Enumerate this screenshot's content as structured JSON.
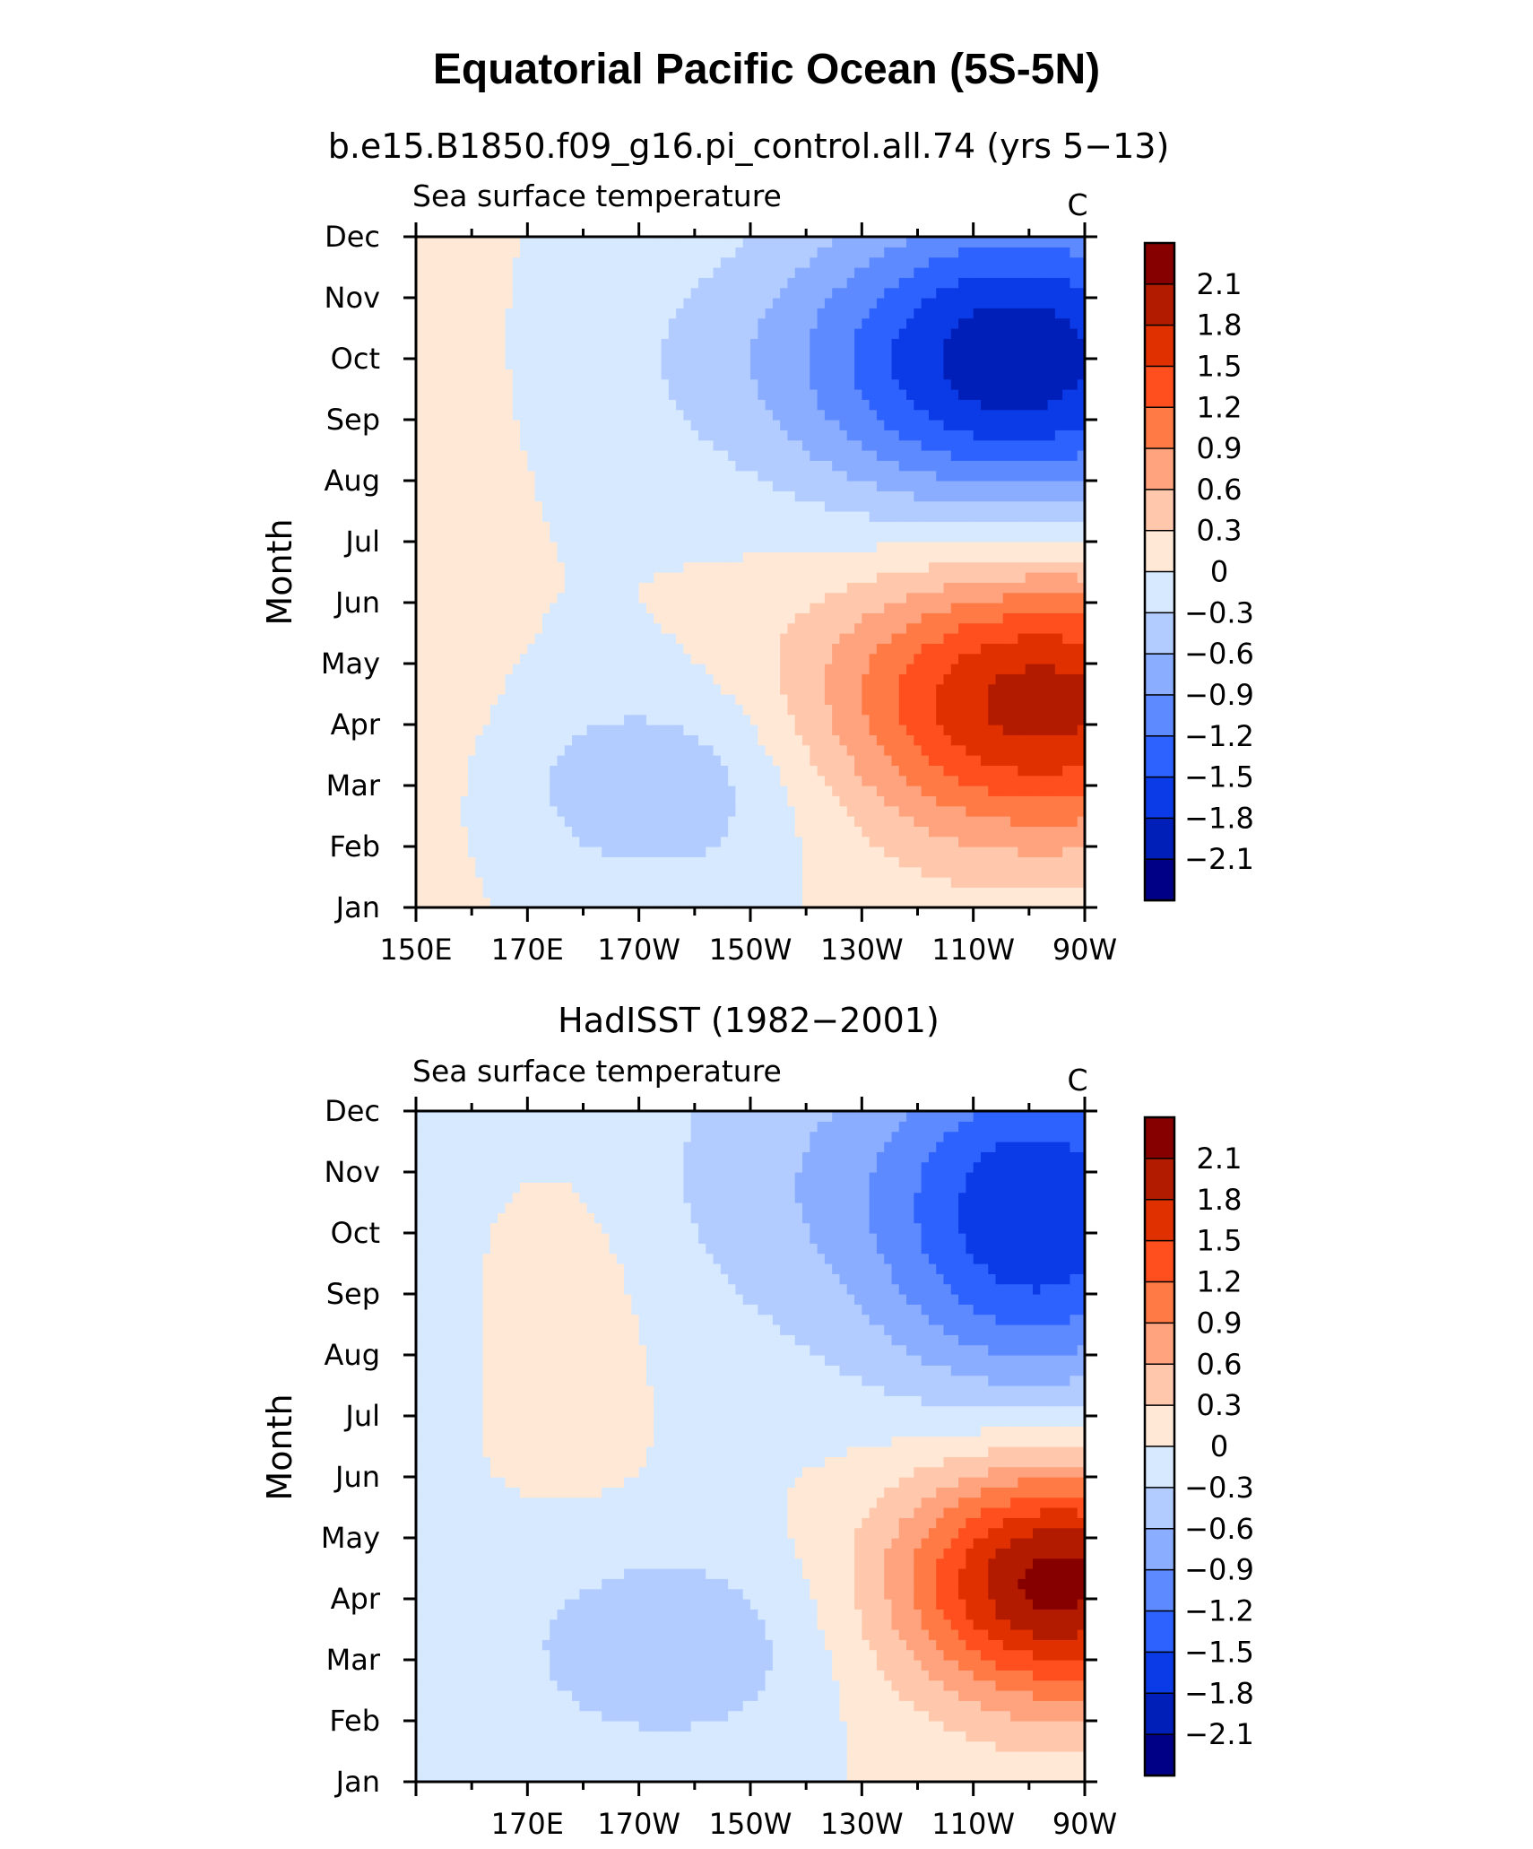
{
  "title": "Equatorial Pacific Ocean (5S-5N)",
  "chart_data": [
    {
      "type": "heatmap",
      "subtitle": "b.e15.B1850.f09_g16.pi_control.all.74 (yrs 5−13)",
      "left_string": "Sea surface temperature",
      "right_string": "C",
      "ylabel": "Month",
      "xlabel": "",
      "xlim": [
        150,
        270
      ],
      "x_tick_values": [
        150,
        170,
        190,
        210,
        230,
        250,
        270
      ],
      "x_tick_labels": [
        "150E",
        "170E",
        "170W",
        "150W",
        "130W",
        "110W",
        "90W"
      ],
      "y_tick_labels": [
        "Jan",
        "Feb",
        "Mar",
        "Apr",
        "May",
        "Jun",
        "Jul",
        "Aug",
        "Sep",
        "Oct",
        "Nov",
        "Dec"
      ],
      "units": "C",
      "contour_levels": [
        -2.1,
        -1.8,
        -1.5,
        -1.2,
        -0.9,
        -0.6,
        -0.3,
        0,
        0.3,
        0.6,
        0.9,
        1.2,
        1.5,
        1.8,
        2.1
      ],
      "peaks": [
        {
          "lon": 262,
          "month": 3.4,
          "value": 1.95,
          "sx": 38,
          "sy": 2.3
        },
        {
          "lon": 258,
          "month": 9.0,
          "value": -2.0,
          "sx": 38,
          "sy": 2.6
        },
        {
          "lon": 195,
          "month": 2.0,
          "value": -0.55,
          "sx": 28,
          "sy": 1.7
        },
        {
          "lon": 205,
          "month": 9.0,
          "value": -0.2,
          "sx": 35,
          "sy": 2.0
        },
        {
          "lon": 155,
          "month": 6.5,
          "value": 0.2,
          "sx": 12,
          "sy": 6
        }
      ]
    },
    {
      "type": "heatmap",
      "subtitle": "HadISST (1982−2001)",
      "left_string": "Sea surface temperature",
      "right_string": "C",
      "ylabel": "Month",
      "xlabel": "",
      "xlim": [
        150,
        270
      ],
      "x_tick_values": [
        170,
        190,
        210,
        230,
        250,
        270
      ],
      "x_tick_labels": [
        "170E",
        "170W",
        "150W",
        "130W",
        "110W",
        "90W"
      ],
      "y_tick_labels": [
        "Jan",
        "Feb",
        "Mar",
        "Apr",
        "May",
        "Jun",
        "Jul",
        "Aug",
        "Sep",
        "Oct",
        "Nov",
        "Dec"
      ],
      "units": "C",
      "contour_levels": [
        -2.1,
        -1.8,
        -1.5,
        -1.2,
        -0.9,
        -0.6,
        -0.3,
        0,
        0.3,
        0.6,
        0.9,
        1.2,
        1.5,
        1.8,
        2.1
      ],
      "peaks": [
        {
          "lon": 265,
          "month": 3.3,
          "value": 2.25,
          "sx": 28,
          "sy": 2.0
        },
        {
          "lon": 262,
          "month": 9.3,
          "value": -1.75,
          "sx": 30,
          "sy": 3.0
        },
        {
          "lon": 195,
          "month": 2.2,
          "value": -0.55,
          "sx": 28,
          "sy": 1.7
        },
        {
          "lon": 215,
          "month": 10.0,
          "value": -0.4,
          "sx": 30,
          "sy": 3.0
        },
        {
          "lon": 180,
          "month": 7.5,
          "value": 0.2,
          "sx": 12,
          "sy": 2.5
        },
        {
          "lon": 152,
          "month": 7.0,
          "value": -0.2,
          "sx": 6,
          "sy": 2.0
        }
      ]
    }
  ],
  "colorbar": {
    "labels": [
      "2.1",
      "1.8",
      "1.5",
      "1.2",
      "0.9",
      "0.6",
      "0.3",
      "0",
      "−0.3",
      "−0.6",
      "−0.9",
      "−1.2",
      "−1.5",
      "−1.8",
      "−2.1"
    ],
    "colors": [
      "#870000",
      "#B31B00",
      "#E03000",
      "#FF4F1F",
      "#FF7A45",
      "#FFA27E",
      "#FFC8AD",
      "#FFE9D6",
      "#D6E9FF",
      "#B3CCFF",
      "#8AADFF",
      "#5E8AFF",
      "#2E62FF",
      "#0A3BE6",
      "#001EB8",
      "#000087"
    ]
  }
}
